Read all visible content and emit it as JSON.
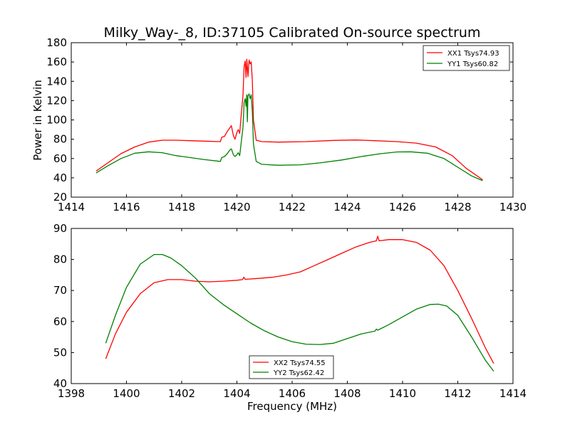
{
  "chart_data": [
    {
      "type": "line",
      "title": "Milky_Way-_8, ID:37105 Calibrated On-source spectrum",
      "xlabel": "",
      "ylabel": "Power in Kelvin",
      "xlim": [
        1414,
        1430
      ],
      "ylim": [
        20,
        180
      ],
      "xticks": [
        1414,
        1416,
        1418,
        1420,
        1422,
        1424,
        1426,
        1428,
        1430
      ],
      "yticks": [
        20,
        40,
        60,
        80,
        100,
        120,
        140,
        160,
        180
      ],
      "legend_position": "top-right",
      "grid": false,
      "series": [
        {
          "name": "XX1 Tsys74.93",
          "color": "#ff0000",
          "points": [
            [
              1414.9,
              47
            ],
            [
              1415.3,
              55
            ],
            [
              1415.8,
              65
            ],
            [
              1416.3,
              72
            ],
            [
              1416.8,
              77
            ],
            [
              1417.3,
              79
            ],
            [
              1417.8,
              79
            ],
            [
              1418.3,
              78.5
            ],
            [
              1418.8,
              78
            ],
            [
              1419.4,
              77.5
            ],
            [
              1419.45,
              82
            ],
            [
              1419.55,
              83
            ],
            [
              1419.65,
              88
            ],
            [
              1419.75,
              92
            ],
            [
              1419.8,
              94
            ],
            [
              1419.87,
              84
            ],
            [
              1419.93,
              80
            ],
            [
              1420.0,
              87
            ],
            [
              1420.05,
              90
            ],
            [
              1420.1,
              86
            ],
            [
              1420.17,
              110
            ],
            [
              1420.22,
              125
            ],
            [
              1420.26,
              155
            ],
            [
              1420.3,
              161
            ],
            [
              1420.33,
              144
            ],
            [
              1420.36,
              163
            ],
            [
              1420.4,
              145
            ],
            [
              1420.44,
              162
            ],
            [
              1420.48,
              158
            ],
            [
              1420.52,
              160
            ],
            [
              1420.56,
              140
            ],
            [
              1420.6,
              100
            ],
            [
              1420.7,
              79
            ],
            [
              1420.9,
              77.5
            ],
            [
              1421.5,
              77
            ],
            [
              1422.5,
              77.5
            ],
            [
              1423.5,
              78.8
            ],
            [
              1424.3,
              79.2
            ],
            [
              1425.0,
              78.5
            ],
            [
              1425.8,
              77.5
            ],
            [
              1426.5,
              76
            ],
            [
              1427.2,
              72
            ],
            [
              1427.8,
              63
            ],
            [
              1428.3,
              50
            ],
            [
              1428.9,
              38
            ]
          ]
        },
        {
          "name": "YY1 Tsys60.82",
          "color": "#008000",
          "points": [
            [
              1414.9,
              45
            ],
            [
              1415.3,
              52
            ],
            [
              1415.8,
              60
            ],
            [
              1416.3,
              65.5
            ],
            [
              1416.8,
              67
            ],
            [
              1417.3,
              66
            ],
            [
              1417.8,
              63
            ],
            [
              1418.3,
              61
            ],
            [
              1418.8,
              59
            ],
            [
              1419.4,
              57
            ],
            [
              1419.45,
              61
            ],
            [
              1419.55,
              62
            ],
            [
              1419.65,
              65
            ],
            [
              1419.75,
              69
            ],
            [
              1419.8,
              70
            ],
            [
              1419.87,
              64
            ],
            [
              1419.93,
              62
            ],
            [
              1420.0,
              64
            ],
            [
              1420.05,
              66
            ],
            [
              1420.1,
              63
            ],
            [
              1420.17,
              80
            ],
            [
              1420.22,
              92
            ],
            [
              1420.26,
              118
            ],
            [
              1420.3,
              122
            ],
            [
              1420.33,
              114
            ],
            [
              1420.36,
              126
            ],
            [
              1420.38,
              98
            ],
            [
              1420.4,
              125
            ],
            [
              1420.44,
              127
            ],
            [
              1420.48,
              122
            ],
            [
              1420.52,
              126
            ],
            [
              1420.56,
              108
            ],
            [
              1420.6,
              75
            ],
            [
              1420.7,
              57
            ],
            [
              1420.9,
              54
            ],
            [
              1421.5,
              53
            ],
            [
              1422.3,
              53.5
            ],
            [
              1423.0,
              55.5
            ],
            [
              1423.8,
              58.5
            ],
            [
              1424.5,
              62
            ],
            [
              1425.2,
              65
            ],
            [
              1425.8,
              66.8
            ],
            [
              1426.3,
              67
            ],
            [
              1426.9,
              65.5
            ],
            [
              1427.5,
              60
            ],
            [
              1428.0,
              51
            ],
            [
              1428.5,
              42
            ],
            [
              1428.9,
              37
            ]
          ]
        }
      ]
    },
    {
      "type": "line",
      "title": "",
      "xlabel": "Frequency (MHz)",
      "ylabel": "",
      "xlim": [
        1398,
        1414
      ],
      "ylim": [
        40,
        90
      ],
      "xticks": [
        1398,
        1400,
        1402,
        1404,
        1406,
        1408,
        1410,
        1412,
        1414
      ],
      "yticks": [
        40,
        50,
        60,
        70,
        80,
        90
      ],
      "legend_position": "bottom-center",
      "grid": false,
      "series": [
        {
          "name": "XX2 Tsys74.55",
          "color": "#ff0000",
          "points": [
            [
              1399.25,
              48
            ],
            [
              1399.6,
              56
            ],
            [
              1400.0,
              63
            ],
            [
              1400.5,
              69
            ],
            [
              1401.0,
              72.5
            ],
            [
              1401.5,
              73.5
            ],
            [
              1402.0,
              73.5
            ],
            [
              1402.5,
              73
            ],
            [
              1403.0,
              72.8
            ],
            [
              1403.5,
              73
            ],
            [
              1404.0,
              73.3
            ],
            [
              1404.2,
              73.5
            ],
            [
              1404.25,
              74.3
            ],
            [
              1404.3,
              73.6
            ],
            [
              1404.8,
              73.9
            ],
            [
              1405.3,
              74.3
            ],
            [
              1405.8,
              75
            ],
            [
              1406.3,
              76
            ],
            [
              1406.8,
              78
            ],
            [
              1407.3,
              80
            ],
            [
              1407.8,
              82
            ],
            [
              1408.3,
              84
            ],
            [
              1408.8,
              85.5
            ],
            [
              1409.05,
              86
            ],
            [
              1409.1,
              87.5
            ],
            [
              1409.15,
              86
            ],
            [
              1409.5,
              86.4
            ],
            [
              1410.0,
              86.4
            ],
            [
              1410.5,
              85.5
            ],
            [
              1411.0,
              83
            ],
            [
              1411.5,
              78
            ],
            [
              1412.0,
              70
            ],
            [
              1412.5,
              61
            ],
            [
              1413.0,
              51.5
            ],
            [
              1413.3,
              46.5
            ]
          ]
        },
        {
          "name": "YY2 Tsys62.42",
          "color": "#008000",
          "points": [
            [
              1399.25,
              53
            ],
            [
              1399.6,
              62
            ],
            [
              1400.0,
              71
            ],
            [
              1400.5,
              78.5
            ],
            [
              1401.0,
              81.6
            ],
            [
              1401.3,
              81.6
            ],
            [
              1401.6,
              80.5
            ],
            [
              1402.0,
              78
            ],
            [
              1402.5,
              74
            ],
            [
              1403.0,
              69
            ],
            [
              1403.5,
              65.5
            ],
            [
              1404.0,
              62.5
            ],
            [
              1404.5,
              59.5
            ],
            [
              1405.0,
              57
            ],
            [
              1405.5,
              55
            ],
            [
              1406.0,
              53.5
            ],
            [
              1406.5,
              52.7
            ],
            [
              1407.0,
              52.6
            ],
            [
              1407.5,
              53
            ],
            [
              1408.0,
              54.5
            ],
            [
              1408.5,
              56
            ],
            [
              1409.0,
              56.9
            ],
            [
              1409.05,
              57.6
            ],
            [
              1409.1,
              57.2
            ],
            [
              1409.5,
              59
            ],
            [
              1410.0,
              61.5
            ],
            [
              1410.5,
              64
            ],
            [
              1411.0,
              65.5
            ],
            [
              1411.3,
              65.6
            ],
            [
              1411.6,
              65
            ],
            [
              1412.0,
              62
            ],
            [
              1412.5,
              55
            ],
            [
              1413.0,
              47.5
            ],
            [
              1413.3,
              44
            ]
          ]
        }
      ]
    }
  ]
}
